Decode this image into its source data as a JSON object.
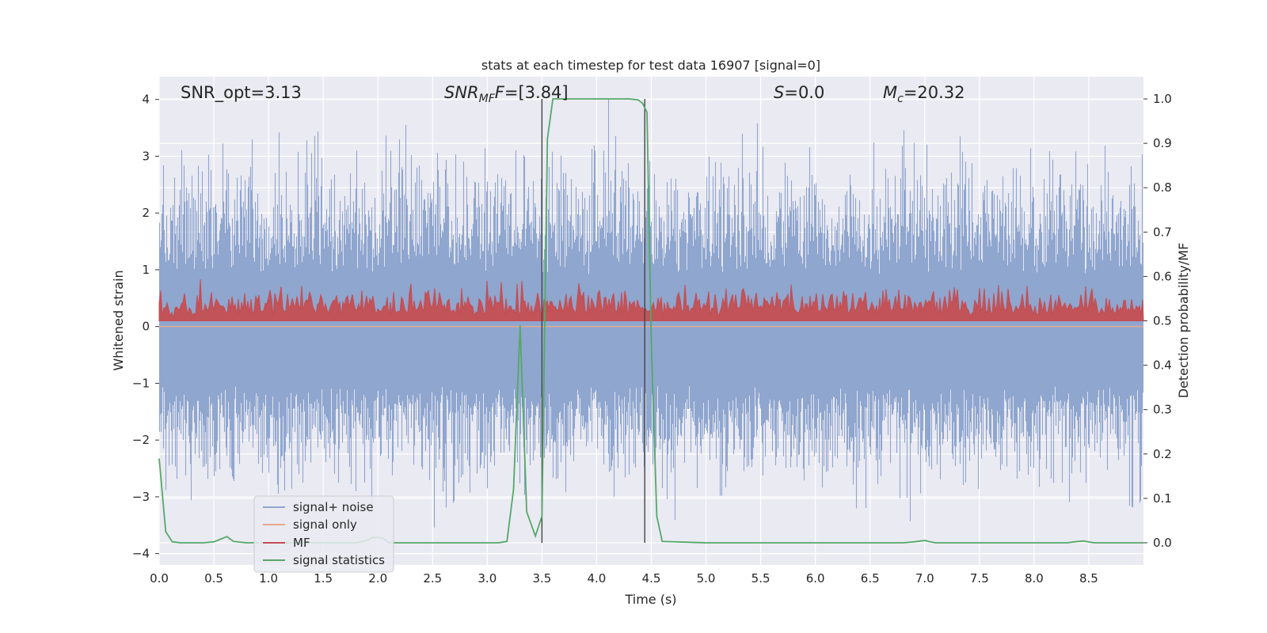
{
  "chart_data": {
    "type": "line",
    "title": "stats at each timestep for test data 16907 [signal=0]",
    "xlabel": "Time (s)",
    "ylabel": "Whitened strain",
    "ylabel_right": "Detection probability/MF",
    "xlim": [
      0,
      9
    ],
    "ylim": [
      -4.2,
      4.4
    ],
    "ylim_right": [
      -0.05,
      1.05
    ],
    "x_ticks": [
      "0.0",
      "0.5",
      "1.0",
      "1.5",
      "2.0",
      "2.5",
      "3.0",
      "3.5",
      "4.0",
      "4.5",
      "5.0",
      "5.5",
      "6.0",
      "6.5",
      "7.0",
      "7.5",
      "8.0",
      "8.5"
    ],
    "y_ticks": [
      "4",
      "3",
      "2",
      "1",
      "0",
      "−1",
      "−2",
      "−3",
      "−4"
    ],
    "y_ticks_right": [
      "1.0",
      "0.9",
      "0.8",
      "0.7",
      "0.6",
      "0.5",
      "0.4",
      "0.3",
      "0.2",
      "0.1",
      "0.0"
    ],
    "grid": true,
    "legend_position": "lower-left",
    "annotations": {
      "snr_opt": "SNR_opt=3.13",
      "snr_mf_label": "SNR",
      "snr_mf_sub": "MF",
      "snr_mf_value": "=[3.84]",
      "s_label": "S",
      "s_value": "=0.0",
      "mc_label": "M",
      "mc_sub": "c",
      "mc_value": "=20.32"
    },
    "vertical_lines_x": [
      3.5,
      4.44
    ],
    "series": [
      {
        "name": "signal+ noise",
        "color": "#8fa6cf",
        "axis": "left",
        "description_range": [
          -3.7,
          4.0
        ]
      },
      {
        "name": "signal only",
        "color": "#e8a88c",
        "axis": "left",
        "values_constant": 0.0
      },
      {
        "name": "MF",
        "color": "#c44e52",
        "axis": "right"
      },
      {
        "name": "signal statistics",
        "color": "#55a868",
        "axis": "right",
        "x": [
          0.0,
          0.06,
          0.12,
          0.2,
          0.3,
          0.4,
          0.5,
          0.56,
          0.62,
          0.68,
          0.8,
          1.0,
          1.2,
          1.5,
          1.8,
          1.9,
          1.95,
          2.0,
          2.05,
          2.1,
          2.5,
          2.8,
          3.1,
          3.18,
          3.24,
          3.3,
          3.36,
          3.44,
          3.5,
          3.55,
          3.6,
          3.65,
          3.7,
          4.0,
          4.3,
          4.38,
          4.42,
          4.46,
          4.5,
          4.55,
          4.6,
          5.0,
          6.0,
          6.8,
          6.9,
          7.0,
          7.05,
          7.1,
          8.0,
          8.3,
          8.4,
          8.45,
          8.55,
          9.0
        ],
        "values": [
          0.19,
          0.025,
          0.002,
          0.0,
          0.0,
          0.0,
          0.002,
          0.008,
          0.014,
          0.003,
          0.0,
          0.0,
          0.0,
          0.0,
          0.0,
          0.005,
          0.012,
          0.012,
          0.01,
          0.0,
          0.0,
          0.0,
          0.0,
          0.003,
          0.12,
          0.49,
          0.07,
          0.015,
          0.06,
          0.91,
          1.0,
          1.0,
          1.0,
          1.0,
          1.0,
          0.998,
          0.99,
          0.97,
          0.45,
          0.06,
          0.003,
          0.0,
          0.0,
          0.0,
          0.002,
          0.005,
          0.002,
          0.0,
          0.0,
          0.0,
          0.003,
          0.004,
          0.0,
          0.0
        ]
      }
    ]
  }
}
